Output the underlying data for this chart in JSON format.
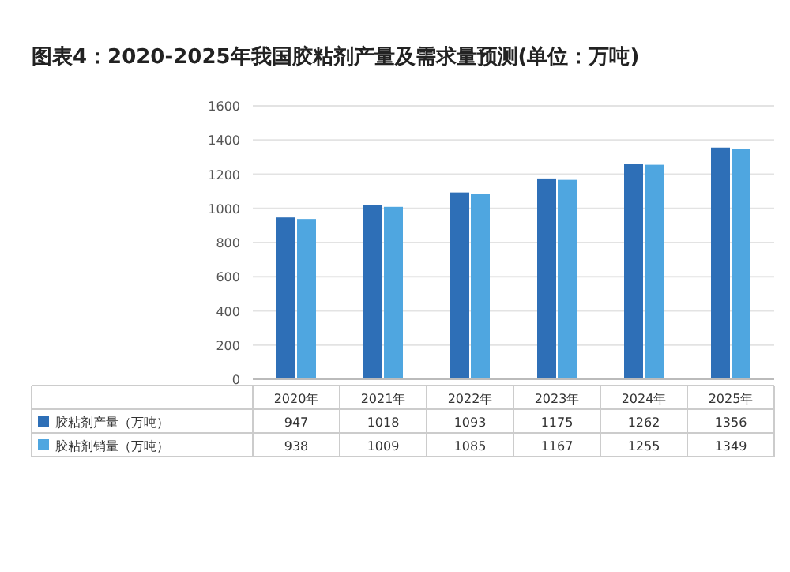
{
  "chart_data": {
    "type": "bar",
    "title": "图表4：2020-2025年我国胶粘剂产量及需求量预测(单位：万吨)",
    "categories": [
      "2020年",
      "2021年",
      "2022年",
      "2023年",
      "2024年",
      "2025年"
    ],
    "series": [
      {
        "name": "胶粘剂产量（万吨）",
        "color": "#2e6fb7",
        "values": [
          947,
          1018,
          1093,
          1175,
          1262,
          1356
        ]
      },
      {
        "name": "胶粘剂销量（万吨）",
        "color": "#4fa6e0",
        "values": [
          938,
          1009,
          1085,
          1167,
          1255,
          1349
        ]
      }
    ],
    "ylim": [
      0,
      1600
    ],
    "yticks": [
      0,
      200,
      400,
      600,
      800,
      1000,
      1200,
      1400,
      1600
    ],
    "grid": "y",
    "data_labels": true,
    "legend": "bottom"
  }
}
